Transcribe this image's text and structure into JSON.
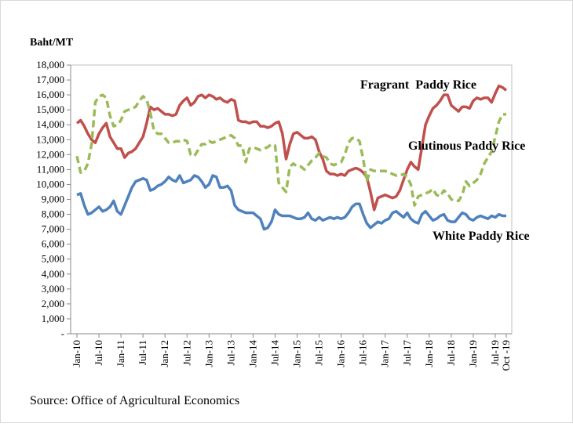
{
  "chart_data": {
    "type": "line",
    "y_label": "Baht/MT",
    "source": "Source: Office of Agricultural Economics",
    "categories": [
      "Jan-10",
      null,
      null,
      null,
      null,
      null,
      "Jul-10",
      null,
      null,
      null,
      null,
      null,
      "Jan-11",
      null,
      null,
      null,
      null,
      null,
      "Jul-11",
      null,
      null,
      null,
      null,
      null,
      "Jan-12",
      null,
      null,
      null,
      null,
      null,
      "Jul-12",
      null,
      null,
      null,
      null,
      null,
      "Jan-13",
      null,
      null,
      null,
      null,
      null,
      "Jul-13",
      null,
      null,
      null,
      null,
      null,
      "Jan-14",
      null,
      null,
      null,
      null,
      null,
      "Jul-14",
      null,
      null,
      null,
      null,
      null,
      "Jan-15",
      null,
      null,
      null,
      null,
      null,
      "Jul-15",
      null,
      null,
      null,
      null,
      null,
      "Jan-16",
      null,
      null,
      null,
      null,
      null,
      "Jul-16",
      null,
      null,
      null,
      null,
      null,
      "Jan-17",
      null,
      null,
      null,
      null,
      null,
      "Jul-17",
      null,
      null,
      null,
      null,
      null,
      "Jan-18",
      null,
      null,
      null,
      null,
      null,
      "Jul-18",
      null,
      null,
      null,
      null,
      null,
      "Jan-19",
      null,
      null,
      null,
      null,
      null,
      "Jul-19",
      null,
      null,
      "Oct -19"
    ],
    "series": [
      {
        "name": "Fragrant  Paddy Rice",
        "color": "#c0504d",
        "dashed": false,
        "values": [
          14100,
          14300,
          13900,
          13400,
          13000,
          12800,
          13400,
          13800,
          14100,
          13200,
          12800,
          12400,
          12400,
          11800,
          12100,
          12200,
          12400,
          12800,
          13200,
          14100,
          15200,
          15000,
          15100,
          14900,
          14700,
          14700,
          14600,
          14700,
          15300,
          15600,
          15800,
          15300,
          15500,
          15900,
          16000,
          15800,
          16000,
          15900,
          15700,
          15800,
          15600,
          15500,
          15700,
          15600,
          14300,
          14200,
          14200,
          14100,
          14200,
          14200,
          13900,
          13900,
          13800,
          13900,
          14100,
          14200,
          13400,
          11700,
          12700,
          13400,
          13500,
          13300,
          13100,
          13100,
          13200,
          13000,
          12200,
          11700,
          10900,
          10700,
          10700,
          10600,
          10700,
          10600,
          10900,
          11000,
          11100,
          11000,
          10800,
          10500,
          9500,
          8300,
          9100,
          9200,
          9300,
          9200,
          9100,
          9200,
          9600,
          10300,
          11000,
          11500,
          11200,
          11000,
          12500,
          14000,
          14600,
          15100,
          15300,
          15600,
          16000,
          16000,
          15300,
          15100,
          14900,
          15200,
          15200,
          15100,
          15600,
          15800,
          15700,
          15800,
          15800,
          15500,
          16100,
          16600,
          16500,
          16300
        ]
      },
      {
        "name": "Glutinous Paddy Rice",
        "color": "#9bbb59",
        "dashed": true,
        "values": [
          11900,
          10800,
          10900,
          11400,
          12700,
          15500,
          15900,
          16000,
          15800,
          14600,
          13900,
          14000,
          14300,
          14900,
          15000,
          15100,
          15200,
          15600,
          15900,
          15700,
          14800,
          13600,
          13400,
          13400,
          13100,
          12800,
          12800,
          12900,
          12900,
          13000,
          12900,
          12000,
          11900,
          12300,
          12700,
          12700,
          12900,
          12800,
          12900,
          13000,
          13100,
          13200,
          13300,
          13100,
          12600,
          12600,
          11500,
          12400,
          12500,
          12400,
          12300,
          12400,
          12500,
          12700,
          12600,
          10100,
          9800,
          9500,
          11200,
          11400,
          11200,
          11200,
          11000,
          11300,
          11600,
          11800,
          12100,
          11900,
          11800,
          11400,
          11300,
          11400,
          11500,
          12000,
          12800,
          13100,
          13100,
          12900,
          11700,
          10200,
          11000,
          10900,
          10900,
          10900,
          10900,
          10800,
          10700,
          10600,
          10600,
          10700,
          10500,
          10000,
          8600,
          9200,
          9300,
          9400,
          9500,
          9700,
          9300,
          9200,
          9600,
          9400,
          9000,
          8900,
          8900,
          9300,
          10200,
          9900,
          10100,
          10300,
          10700,
          11400,
          11800,
          12200,
          13200,
          14200,
          14700,
          14700
        ]
      },
      {
        "name": "White Paddy Rice",
        "color": "#4f81bd",
        "dashed": false,
        "values": [
          9300,
          9400,
          8600,
          8000,
          8100,
          8300,
          8500,
          8200,
          8300,
          8500,
          8900,
          8200,
          8000,
          8600,
          9200,
          9800,
          10200,
          10300,
          10400,
          10300,
          9600,
          9700,
          9900,
          10000,
          10200,
          10500,
          10300,
          10200,
          10600,
          10100,
          10200,
          10300,
          10600,
          10500,
          10200,
          9800,
          10000,
          10600,
          10500,
          9800,
          9800,
          9900,
          9600,
          8600,
          8300,
          8200,
          8100,
          8100,
          8100,
          7900,
          7700,
          7000,
          7100,
          7500,
          8300,
          8000,
          7900,
          7900,
          7900,
          7800,
          7700,
          7700,
          7800,
          8100,
          7700,
          7600,
          7800,
          7600,
          7700,
          7800,
          7700,
          7800,
          7700,
          7800,
          8100,
          8500,
          8700,
          8700,
          8000,
          7400,
          7100,
          7300,
          7500,
          7400,
          7600,
          7700,
          8100,
          8200,
          8000,
          7800,
          8100,
          7700,
          7500,
          7400,
          8000,
          8200,
          7900,
          7600,
          7700,
          7900,
          8000,
          7600,
          7500,
          7500,
          7800,
          8100,
          8000,
          7700,
          7600,
          7800,
          7900,
          7800,
          7700,
          7900,
          7800,
          8000,
          7900,
          7900
        ]
      }
    ],
    "ylim": [
      0,
      18000
    ],
    "yticks": [
      {
        "value": 0,
        "label": "-"
      },
      {
        "value": 1000,
        "label": "1,000"
      },
      {
        "value": 2000,
        "label": "2,000"
      },
      {
        "value": 3000,
        "label": "3,000"
      },
      {
        "value": 4000,
        "label": "4,000"
      },
      {
        "value": 5000,
        "label": "5,000"
      },
      {
        "value": 6000,
        "label": "6,000"
      },
      {
        "value": 7000,
        "label": "7,000"
      },
      {
        "value": 8000,
        "label": "8,000"
      },
      {
        "value": 9000,
        "label": "9,000"
      },
      {
        "value": 10000,
        "label": "10,000"
      },
      {
        "value": 11000,
        "label": "11,000"
      },
      {
        "value": 12000,
        "label": "12,000"
      },
      {
        "value": 13000,
        "label": "13,000"
      },
      {
        "value": 14000,
        "label": "14,000"
      },
      {
        "value": 15000,
        "label": "15,000"
      },
      {
        "value": 16000,
        "label": "16,000"
      },
      {
        "value": 17000,
        "label": "17,000"
      },
      {
        "value": 18000,
        "label": "18,000"
      }
    ],
    "grid": false
  }
}
